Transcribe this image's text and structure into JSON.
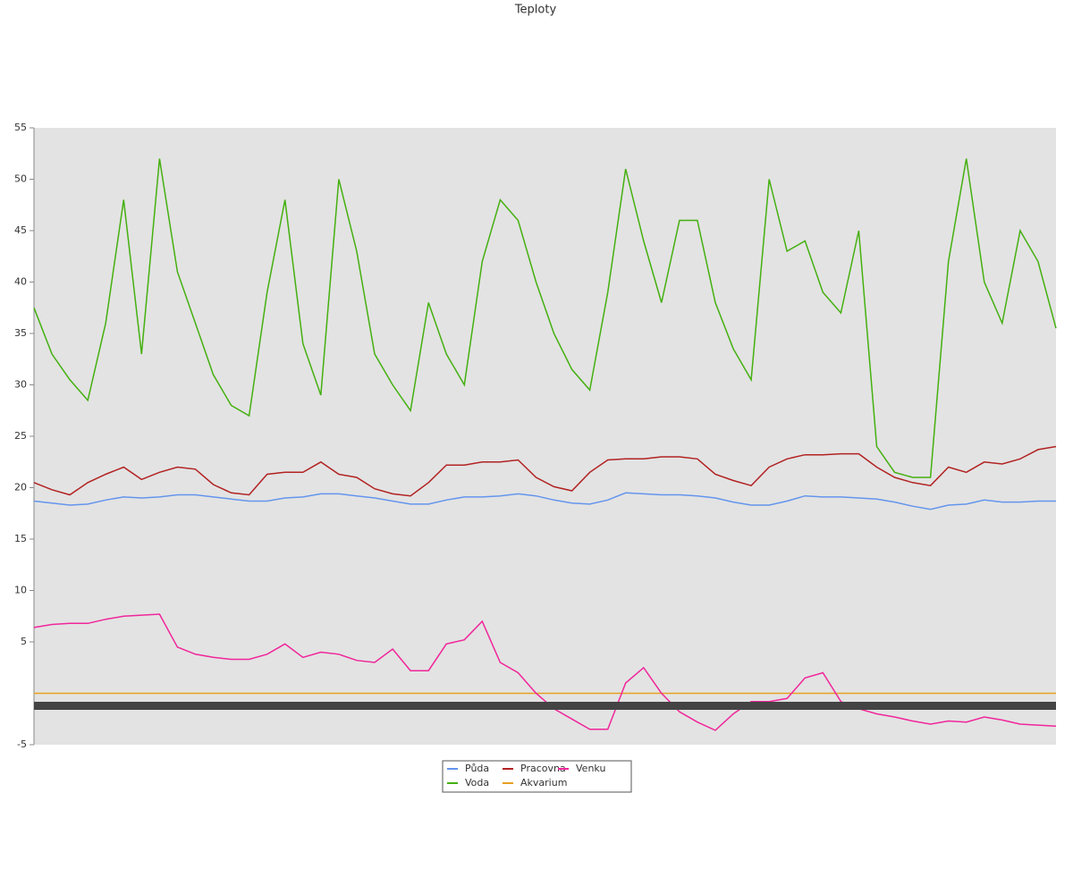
{
  "chart_data": {
    "type": "line",
    "title": "Teploty",
    "categories": [
      null,
      null,
      null,
      null,
      null,
      null,
      null,
      null,
      null,
      null,
      null,
      null,
      null,
      null,
      null,
      null,
      null,
      null,
      null,
      null,
      null,
      null,
      null,
      null,
      null,
      null,
      null,
      null,
      null,
      null,
      null,
      null,
      null,
      null,
      null,
      null,
      null,
      null,
      null,
      null,
      null,
      null,
      null,
      null,
      null,
      null,
      null,
      null,
      null,
      null,
      null,
      null,
      null,
      null,
      null,
      null,
      null,
      null
    ],
    "ylim": [
      -5,
      55
    ],
    "yticks": [
      -5,
      5,
      10,
      15,
      20,
      25,
      30,
      35,
      40,
      45,
      50,
      55
    ],
    "grid": false,
    "legend": "bottom",
    "series": [
      {
        "name": "Půda",
        "color": "#6495ed",
        "values": [
          18.7,
          18.5,
          18.3,
          18.4,
          18.8,
          19.1,
          19,
          19.1,
          19.3,
          19.3,
          19.1,
          18.9,
          18.7,
          18.7,
          19,
          19.1,
          19.4,
          19.4,
          19.2,
          19,
          18.7,
          18.4,
          18.4,
          18.8,
          19.1,
          19.1,
          19.2,
          19.4,
          19.2,
          18.8,
          18.5,
          18.4,
          18.8,
          19.5,
          19.4,
          19.3,
          19.3,
          19.2,
          19,
          18.6,
          18.3,
          18.3,
          18.7,
          19.2,
          19.1,
          19.1,
          19,
          18.9,
          18.6,
          18.2,
          17.9,
          18.3,
          18.4,
          18.8,
          18.6,
          18.6,
          18.7,
          18.7
        ]
      },
      {
        "name": "Voda",
        "color": "#44b010",
        "values": [
          37.5,
          33,
          30.5,
          28.5,
          36,
          48,
          33,
          52,
          41,
          36,
          31,
          28,
          27,
          39,
          48,
          34,
          29,
          50,
          43,
          33,
          30,
          27.5,
          38,
          33,
          30,
          42,
          48,
          46,
          40,
          35,
          31.5,
          29.5,
          39,
          51,
          44,
          38,
          46,
          46,
          38,
          33.5,
          30.5,
          50,
          43,
          44,
          39,
          37,
          45,
          24,
          21.5,
          21,
          21,
          42,
          52,
          40,
          36,
          45,
          42,
          35.5
        ]
      },
      {
        "name": "Pracovna",
        "color": "#b22222",
        "values": [
          20.5,
          19.8,
          19.3,
          20.5,
          21.3,
          22,
          20.8,
          21.5,
          22,
          21.8,
          20.3,
          19.5,
          19.3,
          21.3,
          21.5,
          21.5,
          22.5,
          21.3,
          21,
          19.9,
          19.4,
          19.2,
          20.5,
          22.2,
          22.2,
          22.5,
          22.5,
          22.7,
          21,
          20.1,
          19.7,
          21.5,
          22.7,
          22.8,
          22.8,
          23,
          23,
          22.8,
          21.3,
          20.7,
          20.2,
          22,
          22.8,
          23.2,
          23.2,
          23.3,
          23.3,
          22,
          21,
          20.5,
          20.2,
          22,
          21.5,
          22.5,
          22.3,
          22.8,
          23.7,
          24
        ]
      },
      {
        "name": "Akvarium",
        "color": "#e8a020",
        "values": [
          0,
          0,
          0,
          0,
          0,
          0,
          0,
          0,
          0,
          0,
          0,
          0,
          0,
          0,
          0,
          0,
          0,
          0,
          0,
          0,
          0,
          0,
          0,
          0,
          0,
          0,
          0,
          0,
          0,
          0,
          0,
          0,
          0,
          0,
          0,
          0,
          0,
          0,
          0,
          0,
          0,
          0,
          0,
          0,
          0,
          0,
          0,
          0,
          0,
          0,
          0,
          0,
          0,
          0,
          0,
          0,
          0,
          0
        ]
      },
      {
        "name": "Venku",
        "color": "#f0259a",
        "values": [
          6.4,
          6.7,
          6.8,
          6.8,
          7.2,
          7.5,
          7.6,
          7.7,
          4.5,
          3.8,
          3.5,
          3.3,
          3.3,
          3.8,
          4.8,
          3.5,
          4,
          3.8,
          3.2,
          3,
          4.3,
          2.2,
          2.2,
          4.8,
          5.2,
          7,
          3,
          2,
          0,
          -1.5,
          -2.5,
          -3.5,
          -3.5,
          1,
          2.5,
          0,
          -1.8,
          -2.8,
          -3.6,
          -2,
          -0.8,
          -0.8,
          -0.5,
          1.5,
          2,
          -0.8,
          -1.5,
          -2,
          -2.3,
          -2.7,
          -3,
          -2.7,
          -2.8,
          -2.3,
          -2.6,
          -3,
          -3.1,
          -3.2
        ]
      }
    ]
  }
}
